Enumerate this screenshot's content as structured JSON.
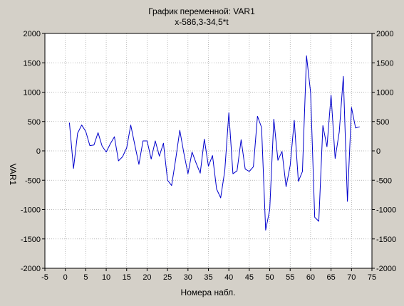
{
  "colors": {
    "background": "#d4d0c8",
    "plot_area": "#ffffff",
    "series": "#0000cc",
    "grid": "#a0a0a0",
    "axis": "#000000"
  },
  "chart_data": {
    "type": "line",
    "title": "График переменной: VAR1",
    "subtitle": "x-586,3-34,5*t",
    "xlabel": "Номера набл.",
    "ylabel": "VAR1",
    "xlim": [
      -5,
      75
    ],
    "ylim": [
      -2000,
      2000
    ],
    "x_ticks": [
      -5,
      0,
      5,
      10,
      15,
      20,
      25,
      30,
      35,
      40,
      45,
      50,
      55,
      60,
      65,
      70,
      75
    ],
    "y_ticks": [
      2000,
      1500,
      1000,
      500,
      0,
      -500,
      -1000,
      -1500,
      -2000
    ],
    "x_tick_labels": [
      "-5",
      "0",
      "5",
      "10",
      "15",
      "20",
      "25",
      "30",
      "35",
      "40",
      "45",
      "50",
      "55",
      "60",
      "65",
      "70",
      "75"
    ],
    "y_tick_labels": [
      "2000",
      "1500",
      "1000",
      "500",
      "0",
      "-500",
      "-1000",
      "-1500",
      "-2000"
    ],
    "grid": true,
    "grid_style": "dotted",
    "right_axis_labels": true,
    "series": [
      {
        "x": [
          1,
          2,
          3,
          4,
          5,
          6,
          7,
          8,
          9,
          10,
          11,
          12,
          13,
          14,
          15,
          16,
          17,
          18,
          19,
          20,
          21,
          22,
          23,
          24,
          25,
          26,
          27,
          28,
          29,
          30,
          31,
          32,
          33,
          34,
          35,
          36,
          37,
          38,
          39,
          40,
          41,
          42,
          43,
          44,
          45,
          46,
          47,
          48,
          49,
          50,
          51,
          52,
          53,
          54,
          55,
          56,
          57,
          58,
          59,
          60,
          61,
          62,
          63,
          64,
          65,
          66,
          67,
          68,
          69,
          70,
          71,
          72
        ],
        "y": [
          480,
          -300,
          300,
          440,
          330,
          90,
          100,
          310,
          80,
          -20,
          120,
          240,
          -170,
          -100,
          50,
          440,
          100,
          -230,
          170,
          170,
          -140,
          170,
          -90,
          130,
          -500,
          -590,
          -140,
          350,
          -40,
          -390,
          -20,
          -210,
          -380,
          200,
          -260,
          -80,
          -650,
          -800,
          -340,
          650,
          -390,
          -340,
          190,
          -310,
          -350,
          -270,
          590,
          400,
          -1350,
          -1000,
          540,
          -160,
          -10,
          -610,
          -250,
          520,
          -520,
          -350,
          1620,
          990,
          -1130,
          -1200,
          430,
          70,
          950,
          -130,
          320,
          1270,
          -860,
          740,
          390,
          410
        ]
      }
    ]
  }
}
